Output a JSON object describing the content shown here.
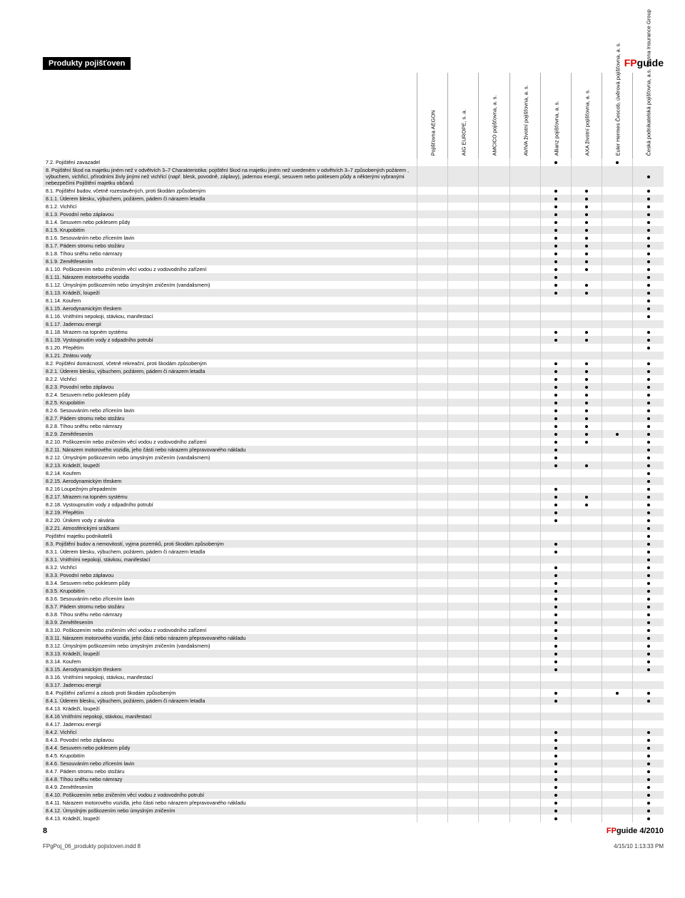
{
  "header": {
    "title": "Produkty pojišťoven"
  },
  "logo": {
    "fp": "FP",
    "guide": "guide"
  },
  "companies": [
    "Pojišťovna AEGON",
    "AIG EUROPE, s. a.",
    "AMCICO pojišťovna, a. s.",
    "AVIVA životní pojišťovna, a. s.",
    "Allianz pojišťovna, a. s.",
    "AXA životní pojišťovna, a. s.",
    "Euler Hermes Čescob, úvěrová pojišťovna, a. s.",
    "Česká podnikatelská pojišťovna, a.s. Vienna Insurance Group"
  ],
  "rows": [
    {
      "t": "7.2. Pojištění zavazadel",
      "d": [
        0,
        0,
        0,
        0,
        1,
        0,
        1,
        0
      ]
    },
    {
      "t": "8. Pojištění škod na majetku jiném než v odvětvích 3–7\nCharakteristika: pojištění škod na majetku jiném než uvedeném v odvětvích 3–7 způsobených požárem , výbuchem, vichřicí, přírodními živly jinými než vichřicí (např. blesk, povodně, záplavy), jadernou energií, sesuvem nebo poklesem půdy a některými vybranými nebezpečími\nPojištění majetku občanů",
      "d": [
        0,
        0,
        0,
        0,
        0,
        0,
        0,
        1
      ],
      "ml": true
    },
    {
      "t": "8.1. Pojištění budov, včetně rozestavěných, proti škodám způsobeným",
      "d": [
        0,
        0,
        0,
        0,
        1,
        1,
        0,
        1
      ]
    },
    {
      "t": "8.1.1. Úderem blesku, výbuchem, požárem, pádem či nárazem letadla",
      "d": [
        0,
        0,
        0,
        0,
        1,
        1,
        0,
        1
      ]
    },
    {
      "t": "8.1.2. Vichřicí",
      "d": [
        0,
        0,
        0,
        0,
        1,
        1,
        0,
        1
      ]
    },
    {
      "t": "8.1.3. Povodní nebo záplavou",
      "d": [
        0,
        0,
        0,
        0,
        1,
        1,
        0,
        1
      ]
    },
    {
      "t": "8.1.4. Sesuvem nebo poklesem půdy",
      "d": [
        0,
        0,
        0,
        0,
        1,
        1,
        0,
        1
      ]
    },
    {
      "t": "8.1.5. Krupobitím",
      "d": [
        0,
        0,
        0,
        0,
        1,
        1,
        0,
        1
      ]
    },
    {
      "t": "8.1.6. Sesouváním nebo zřícením lavin",
      "d": [
        0,
        0,
        0,
        0,
        1,
        1,
        0,
        1
      ]
    },
    {
      "t": "8.1.7. Pádem stromu nebo stožáru",
      "d": [
        0,
        0,
        0,
        0,
        1,
        1,
        0,
        1
      ]
    },
    {
      "t": "8.1.8. Tíhou sněhu nebo námrazy",
      "d": [
        0,
        0,
        0,
        0,
        1,
        1,
        0,
        1
      ]
    },
    {
      "t": "8.1.9. Zemětřesením",
      "d": [
        0,
        0,
        0,
        0,
        1,
        1,
        0,
        1
      ]
    },
    {
      "t": "8.1.10. Poškozením nebo zničením věcí vodou z vodovodního zařízení",
      "d": [
        0,
        0,
        0,
        0,
        1,
        1,
        0,
        1
      ]
    },
    {
      "t": "8.1.11. Nárazem motorového vozidla",
      "d": [
        0,
        0,
        0,
        0,
        1,
        0,
        0,
        1
      ]
    },
    {
      "t": "8.1.12. Úmyslným poškozením nebo úmyslným zničením (vandalismem)",
      "d": [
        0,
        0,
        0,
        0,
        1,
        1,
        0,
        1
      ]
    },
    {
      "t": "8.1.13. Krádeží, loupeží",
      "d": [
        0,
        0,
        0,
        0,
        1,
        1,
        0,
        1
      ]
    },
    {
      "t": "8.1.14. Kouřem",
      "d": [
        0,
        0,
        0,
        0,
        0,
        0,
        0,
        1
      ]
    },
    {
      "t": "8.1.15. Aerodynamickým třeskem",
      "d": [
        0,
        0,
        0,
        0,
        0,
        0,
        0,
        1
      ]
    },
    {
      "t": "8.1.16. Vnitřními nepokoji, stávkou, manifestací",
      "d": [
        0,
        0,
        0,
        0,
        0,
        0,
        0,
        1
      ]
    },
    {
      "t": "8.1.17. Jadernou energií",
      "d": [
        0,
        0,
        0,
        0,
        0,
        0,
        0,
        0
      ]
    },
    {
      "t": "8.1.18. Mrazem na topném systému",
      "d": [
        0,
        0,
        0,
        0,
        1,
        1,
        0,
        1
      ]
    },
    {
      "t": "8.1.19. Vystoupnutím vody z odpadního potrubí",
      "d": [
        0,
        0,
        0,
        0,
        1,
        1,
        0,
        1
      ]
    },
    {
      "t": "8.1.20. Přepětím",
      "d": [
        0,
        0,
        0,
        0,
        0,
        0,
        0,
        1
      ]
    },
    {
      "t": "8.1.21. Ztrátou vody",
      "d": [
        0,
        0,
        0,
        0,
        0,
        0,
        0,
        0
      ]
    },
    {
      "t": "8.2. Pojištění domácností, včetně rekreační, proti škodám způsobeným",
      "d": [
        0,
        0,
        0,
        0,
        1,
        1,
        0,
        1
      ]
    },
    {
      "t": "8.2.1. Úderem blesku, výbuchem, požárem, pádem či nárazem letadla",
      "d": [
        0,
        0,
        0,
        0,
        1,
        1,
        0,
        1
      ]
    },
    {
      "t": "8.2.2. Vichřicí",
      "d": [
        0,
        0,
        0,
        0,
        1,
        1,
        0,
        1
      ]
    },
    {
      "t": "8.2.3. Povodní nebo záplavou",
      "d": [
        0,
        0,
        0,
        0,
        1,
        1,
        0,
        1
      ]
    },
    {
      "t": "8.2.4. Sesuvem nebo poklesem půdy",
      "d": [
        0,
        0,
        0,
        0,
        1,
        1,
        0,
        1
      ]
    },
    {
      "t": "8.2.5. Krupobitím",
      "d": [
        0,
        0,
        0,
        0,
        1,
        1,
        0,
        1
      ]
    },
    {
      "t": "8.2.6. Sesouváním nebo zřícením lavin",
      "d": [
        0,
        0,
        0,
        0,
        1,
        1,
        0,
        1
      ]
    },
    {
      "t": "8.2.7. Pádem stromu nebo stožáru",
      "d": [
        0,
        0,
        0,
        0,
        1,
        1,
        0,
        1
      ]
    },
    {
      "t": "8.2.8. Tíhou sněhu nebo námrazy",
      "d": [
        0,
        0,
        0,
        0,
        1,
        1,
        0,
        1
      ]
    },
    {
      "t": "8.2.9. Zemětřesením",
      "d": [
        0,
        0,
        0,
        0,
        1,
        1,
        1,
        1
      ]
    },
    {
      "t": "8.2.10. Poškozením nebo zničením věcí vodou z vodovodního zařízení",
      "d": [
        0,
        0,
        0,
        0,
        1,
        1,
        0,
        1
      ]
    },
    {
      "t": "8.2.11. Nárazem motorového vozidla, jeho části nebo nárazem přepravovaného nákladu",
      "d": [
        0,
        0,
        0,
        0,
        1,
        0,
        0,
        1
      ]
    },
    {
      "t": "8.2.12. Úmyslným poškozením nebo úmyslným zničením (vandalismem)",
      "d": [
        0,
        0,
        0,
        0,
        1,
        0,
        0,
        1
      ]
    },
    {
      "t": "8.2.13. Krádeží, loupeží",
      "d": [
        0,
        0,
        0,
        0,
        1,
        1,
        0,
        1
      ]
    },
    {
      "t": "8.2.14. Kouřem",
      "d": [
        0,
        0,
        0,
        0,
        0,
        0,
        0,
        1
      ]
    },
    {
      "t": "8.2.15. Aerodynamickým třeskem",
      "d": [
        0,
        0,
        0,
        0,
        0,
        0,
        0,
        1
      ]
    },
    {
      "t": "8.2.16 Loupežným přepadením",
      "d": [
        0,
        0,
        0,
        0,
        1,
        0,
        0,
        1
      ]
    },
    {
      "t": "8.2.17. Mrazem na topném systému",
      "d": [
        0,
        0,
        0,
        0,
        1,
        1,
        0,
        1
      ]
    },
    {
      "t": "8.2.18. Vystoupnutím vody z odpadního potrubí",
      "d": [
        0,
        0,
        0,
        0,
        1,
        1,
        0,
        1
      ]
    },
    {
      "t": "8.2.19. Přepětím",
      "d": [
        0,
        0,
        0,
        0,
        1,
        0,
        0,
        1
      ]
    },
    {
      "t": "8.2.20. Únikem vody z akvária",
      "d": [
        0,
        0,
        0,
        0,
        1,
        0,
        0,
        1
      ]
    },
    {
      "t": "8.2.21. Atmosférickými srážkami",
      "d": [
        0,
        0,
        0,
        0,
        0,
        0,
        0,
        1
      ]
    },
    {
      "t": "Pojištění majetku podnikatelů",
      "d": [
        0,
        0,
        0,
        0,
        0,
        0,
        0,
        1
      ]
    },
    {
      "t": "8.3. Pojištění budov a nemovitostí, vyjma pozemků, proti škodám způsobeným",
      "d": [
        0,
        0,
        0,
        0,
        1,
        0,
        0,
        1
      ]
    },
    {
      "t": "8.3.1. Úderem blesku, výbuchem, požárem, pádem či nárazem letadla",
      "d": [
        0,
        0,
        0,
        0,
        1,
        0,
        0,
        1
      ]
    },
    {
      "t": "8.3.1. Vnitřními nepokoji, stávkou, manifestací",
      "d": [
        0,
        0,
        0,
        0,
        0,
        0,
        0,
        1
      ]
    },
    {
      "t": "8.3.2. Vichřicí",
      "d": [
        0,
        0,
        0,
        0,
        1,
        0,
        0,
        1
      ]
    },
    {
      "t": "8.3.3. Povodní nebo záplavou",
      "d": [
        0,
        0,
        0,
        0,
        1,
        0,
        0,
        1
      ]
    },
    {
      "t": "8.3.4. Sesuvem nebo poklesem půdy",
      "d": [
        0,
        0,
        0,
        0,
        1,
        0,
        0,
        1
      ]
    },
    {
      "t": "8.3.5. Krupobitím",
      "d": [
        0,
        0,
        0,
        0,
        1,
        0,
        0,
        1
      ]
    },
    {
      "t": "8.3.6. Sesouváním nebo zřícením lavin",
      "d": [
        0,
        0,
        0,
        0,
        1,
        0,
        0,
        1
      ]
    },
    {
      "t": "8.3.7. Pádem stromu nebo stožáru",
      "d": [
        0,
        0,
        0,
        0,
        1,
        0,
        0,
        1
      ]
    },
    {
      "t": "8.3.8. Tíhou sněhu nebo námrazy",
      "d": [
        0,
        0,
        0,
        0,
        1,
        0,
        0,
        1
      ]
    },
    {
      "t": "8.3.9. Zemětřesením",
      "d": [
        0,
        0,
        0,
        0,
        1,
        0,
        0,
        1
      ]
    },
    {
      "t": "8.3.10. Poškozením nebo zničením věcí vodou z vodovodního zařízení",
      "d": [
        0,
        0,
        0,
        0,
        1,
        0,
        0,
        1
      ]
    },
    {
      "t": "8.3.11. Nárazem motorového vozidla, jeho části nebo nárazem přepravovaného nákladu",
      "d": [
        0,
        0,
        0,
        0,
        1,
        0,
        0,
        1
      ]
    },
    {
      "t": "8.3.12. Úmyslným poškozením nebo úmyslným zničením (vandalismem)",
      "d": [
        0,
        0,
        0,
        0,
        1,
        0,
        0,
        1
      ]
    },
    {
      "t": "8.3.13. Krádeží, loupeží",
      "d": [
        0,
        0,
        0,
        0,
        1,
        0,
        0,
        1
      ]
    },
    {
      "t": "8.3.14. Kouřem",
      "d": [
        0,
        0,
        0,
        0,
        1,
        0,
        0,
        1
      ]
    },
    {
      "t": "8.3.15. Aerodynamickým třeskem",
      "d": [
        0,
        0,
        0,
        0,
        1,
        0,
        0,
        1
      ]
    },
    {
      "t": "8.3.16. Vnitřními nepokoji, stávkou, manifestací",
      "d": [
        0,
        0,
        0,
        0,
        0,
        0,
        0,
        0
      ]
    },
    {
      "t": "8.3.17. Jadernou energií",
      "d": [
        0,
        0,
        0,
        0,
        0,
        0,
        0,
        0
      ]
    },
    {
      "t": "8.4. Pojištění zařízení a zásob proti škodám způsobeným",
      "d": [
        0,
        0,
        0,
        0,
        1,
        0,
        1,
        1
      ]
    },
    {
      "t": "8.4.1. Úderem blesku, výbuchem, požárem, pádem či nárazem letadla",
      "d": [
        0,
        0,
        0,
        0,
        1,
        0,
        0,
        1
      ]
    },
    {
      "t": "8.4.13. Krádeží, loupeží",
      "d": [
        0,
        0,
        0,
        0,
        0,
        0,
        0,
        0
      ]
    },
    {
      "t": "8.4.16 Vnitřními nepokoji, stávkou, manifestací",
      "d": [
        0,
        0,
        0,
        0,
        0,
        0,
        0,
        0
      ]
    },
    {
      "t": "8.4.17. Jadernou energií",
      "d": [
        0,
        0,
        0,
        0,
        0,
        0,
        0,
        0
      ]
    },
    {
      "t": "8.4.2. Vichřicí",
      "d": [
        0,
        0,
        0,
        0,
        1,
        0,
        0,
        1
      ]
    },
    {
      "t": "8.4.3. Povodní nebo záplavou",
      "d": [
        0,
        0,
        0,
        0,
        1,
        0,
        0,
        1
      ]
    },
    {
      "t": "8.4.4. Sesuvem nebo poklesem půdy",
      "d": [
        0,
        0,
        0,
        0,
        1,
        0,
        0,
        1
      ]
    },
    {
      "t": "8.4.5. Krupobitím",
      "d": [
        0,
        0,
        0,
        0,
        1,
        0,
        0,
        1
      ]
    },
    {
      "t": "8.4.6. Sesouváním nebo zřícením lavin",
      "d": [
        0,
        0,
        0,
        0,
        1,
        0,
        0,
        1
      ]
    },
    {
      "t": "8.4.7. Pádem stromu nebo stožáru",
      "d": [
        0,
        0,
        0,
        0,
        1,
        0,
        0,
        1
      ]
    },
    {
      "t": "8.4.8. Tíhou sněhu nebo námrazy",
      "d": [
        0,
        0,
        0,
        0,
        1,
        0,
        0,
        1
      ]
    },
    {
      "t": "8.4.9. Zemětřesením",
      "d": [
        0,
        0,
        0,
        0,
        1,
        0,
        0,
        1
      ]
    },
    {
      "t": "8.4.10. Poškozením nebo zničením věcí vodou z vodovodního potrubí",
      "d": [
        0,
        0,
        0,
        0,
        1,
        0,
        0,
        1
      ]
    },
    {
      "t": "8.4.11. Nárazem motorového vozidla, jeho části nebo nárazem přepravovaného nákladu",
      "d": [
        0,
        0,
        0,
        0,
        1,
        0,
        0,
        1
      ]
    },
    {
      "t": "8.4.12. Úmyslným poškozením nebo úmyslným zničením",
      "d": [
        0,
        0,
        0,
        0,
        1,
        0,
        0,
        1
      ]
    },
    {
      "t": "8.4.13. Krádeží, loupeží",
      "d": [
        0,
        0,
        0,
        0,
        1,
        0,
        0,
        1
      ]
    }
  ],
  "footer": {
    "page": "8",
    "issue_fp": "FP",
    "issue_rest": "guide 4/2010"
  },
  "indd": {
    "file": "FPgPoj_06_produkty pojistoven.indd   8",
    "ts": "4/15/10   1:13:33 PM"
  },
  "colors": {
    "shade": "#e8e8e8",
    "accent": "#d00000"
  }
}
